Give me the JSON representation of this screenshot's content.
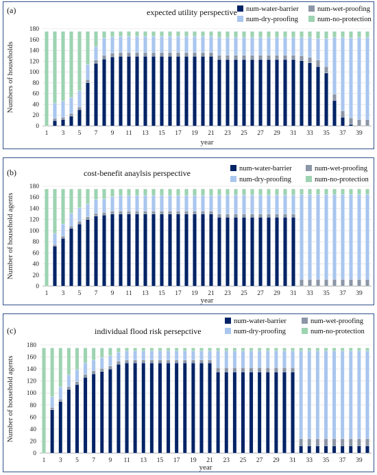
{
  "colors": {
    "water": "#002366",
    "wet": "#8c96a6",
    "dry": "#a9c6ee",
    "none": "#9dd3b1"
  },
  "chart_data": [
    {
      "type": "bar",
      "stacked": true,
      "panel_label": "(a)",
      "title": "expected utility perspective",
      "xlabel": "year",
      "ylabel": "Numbers of households",
      "ylim": [
        0,
        180
      ],
      "yticks": [
        0,
        20,
        40,
        60,
        80,
        100,
        120,
        140,
        160,
        180
      ],
      "xtick_labels": [
        "1",
        "3",
        "5",
        "7",
        "9",
        "11",
        "13",
        "15",
        "17",
        "19",
        "21",
        "23",
        "25",
        "27",
        "29",
        "31",
        "33",
        "35",
        "37",
        "39"
      ],
      "legend": [
        "num-water-barrier",
        "num-wet-proofing",
        "num-dry-proofing",
        "num-no-protection"
      ],
      "categories": [
        "1",
        "2",
        "3",
        "4",
        "5",
        "6",
        "7",
        "8",
        "9",
        "10",
        "11",
        "12",
        "13",
        "14",
        "15",
        "16",
        "17",
        "18",
        "19",
        "20",
        "21",
        "22",
        "23",
        "24",
        "25",
        "26",
        "27",
        "28",
        "29",
        "30",
        "31",
        "32",
        "33",
        "34",
        "35",
        "36",
        "37",
        "38",
        "39",
        "40"
      ],
      "series": [
        {
          "name": "num-water-barrier",
          "values": [
            0,
            10,
            12,
            18,
            30,
            80,
            116,
            124,
            128,
            129,
            129,
            129,
            129,
            129,
            129,
            129,
            129,
            129,
            129,
            129,
            129,
            123,
            123,
            123,
            123,
            123,
            123,
            123,
            123,
            123,
            123,
            121,
            117,
            110,
            98,
            47,
            16,
            3,
            0,
            0
          ]
        },
        {
          "name": "num-wet-proofing",
          "values": [
            0,
            4,
            4,
            5,
            5,
            6,
            6,
            7,
            7,
            7,
            7,
            7,
            7,
            7,
            7,
            7,
            7,
            7,
            7,
            7,
            7,
            8,
            8,
            8,
            8,
            8,
            8,
            8,
            8,
            8,
            8,
            9,
            10,
            12,
            12,
            12,
            12,
            12,
            12,
            12
          ]
        },
        {
          "name": "num-dry-proofing",
          "values": [
            0,
            28,
            30,
            30,
            30,
            28,
            25,
            32,
            30,
            30,
            30,
            30,
            30,
            30,
            30,
            30,
            30,
            30,
            30,
            30,
            30,
            33,
            33,
            33,
            33,
            33,
            33,
            33,
            33,
            33,
            33,
            34,
            37,
            40,
            52,
            105,
            136,
            148,
            152,
            152
          ]
        },
        {
          "name": "num-no-protection",
          "values": [
            175,
            133,
            129,
            122,
            110,
            61,
            28,
            12,
            10,
            9,
            9,
            9,
            9,
            9,
            9,
            9,
            9,
            9,
            9,
            9,
            9,
            11,
            11,
            11,
            11,
            11,
            11,
            11,
            11,
            11,
            11,
            11,
            11,
            13,
            13,
            11,
            11,
            12,
            11,
            11
          ]
        }
      ]
    },
    {
      "type": "bar",
      "stacked": true,
      "panel_label": "(b)",
      "title": "cost-benefit anaylsis perspective",
      "xlabel": "year",
      "ylabel": "Number of household agents",
      "ylim": [
        0,
        180
      ],
      "yticks": [
        0,
        20,
        40,
        60,
        80,
        100,
        120,
        140,
        160,
        180
      ],
      "xtick_labels": [
        "1",
        "3",
        "5",
        "7",
        "9",
        "11",
        "13",
        "15",
        "17",
        "19",
        "21",
        "23",
        "25",
        "27",
        "29",
        "31",
        "33",
        "35",
        "37",
        "39"
      ],
      "legend": [
        "num-water-barrier",
        "num-wet-proofing",
        "num-dry-proofing",
        "num-no-protection"
      ],
      "categories": [
        "1",
        "2",
        "3",
        "4",
        "5",
        "6",
        "7",
        "8",
        "9",
        "10",
        "11",
        "12",
        "13",
        "14",
        "15",
        "16",
        "17",
        "18",
        "19",
        "20",
        "21",
        "22",
        "23",
        "24",
        "25",
        "26",
        "27",
        "28",
        "29",
        "30",
        "31",
        "32",
        "33",
        "34",
        "35",
        "36",
        "37",
        "38",
        "39",
        "40"
      ],
      "series": [
        {
          "name": "num-water-barrier",
          "values": [
            0,
            72,
            86,
            104,
            112,
            120,
            126,
            128,
            130,
            130,
            130,
            130,
            130,
            130,
            130,
            130,
            130,
            130,
            130,
            130,
            130,
            124,
            124,
            124,
            124,
            124,
            124,
            124,
            124,
            124,
            124,
            0,
            0,
            0,
            0,
            0,
            0,
            0,
            0,
            0
          ]
        },
        {
          "name": "num-wet-proofing",
          "values": [
            0,
            3,
            4,
            4,
            5,
            5,
            5,
            5,
            5,
            5,
            5,
            5,
            5,
            5,
            5,
            5,
            5,
            5,
            5,
            5,
            5,
            6,
            6,
            6,
            6,
            6,
            6,
            6,
            6,
            6,
            6,
            12,
            12,
            12,
            12,
            12,
            12,
            12,
            12,
            12
          ]
        },
        {
          "name": "num-dry-proofing",
          "values": [
            0,
            20,
            22,
            23,
            24,
            23,
            25,
            24,
            26,
            28,
            28,
            28,
            28,
            28,
            28,
            28,
            28,
            28,
            28,
            28,
            28,
            34,
            34,
            34,
            34,
            34,
            34,
            34,
            34,
            34,
            34,
            153,
            153,
            153,
            153,
            153,
            153,
            153,
            153,
            153
          ]
        },
        {
          "name": "num-no-protection",
          "values": [
            175,
            80,
            63,
            44,
            34,
            27,
            19,
            18,
            14,
            12,
            12,
            12,
            12,
            12,
            12,
            12,
            12,
            12,
            12,
            12,
            12,
            11,
            11,
            11,
            11,
            11,
            11,
            11,
            11,
            11,
            11,
            10,
            10,
            10,
            10,
            10,
            10,
            10,
            10,
            10
          ]
        }
      ]
    },
    {
      "type": "bar",
      "stacked": true,
      "panel_label": "(c)",
      "title": "individual flood risk persepctive",
      "xlabel": "year",
      "ylabel": "Number of household agents",
      "ylim": [
        0,
        180
      ],
      "yticks": [
        0,
        20,
        40,
        60,
        80,
        100,
        120,
        140,
        160,
        180
      ],
      "xtick_labels": [
        "1",
        "3",
        "5",
        "7",
        "9",
        "11",
        "13",
        "15",
        "17",
        "19",
        "21",
        "23",
        "25",
        "27",
        "29",
        "31",
        "33",
        "35",
        "37",
        "39"
      ],
      "legend": [
        "num-water-barrier",
        "num-wet-proofing",
        "num-dry-proofing",
        "num-no-protection"
      ],
      "categories": [
        "1",
        "2",
        "3",
        "4",
        "5",
        "6",
        "7",
        "8",
        "9",
        "10",
        "11",
        "12",
        "13",
        "14",
        "15",
        "16",
        "17",
        "18",
        "19",
        "20",
        "21",
        "22",
        "23",
        "24",
        "25",
        "26",
        "27",
        "28",
        "29",
        "30",
        "31",
        "32",
        "33",
        "34",
        "35",
        "36",
        "37",
        "38",
        "39",
        "40"
      ],
      "series": [
        {
          "name": "num-water-barrier",
          "values": [
            0,
            72,
            86,
            106,
            114,
            126,
            132,
            136,
            140,
            148,
            150,
            150,
            150,
            150,
            150,
            150,
            150,
            150,
            150,
            150,
            150,
            135,
            135,
            135,
            135,
            135,
            135,
            135,
            135,
            135,
            135,
            12,
            12,
            12,
            12,
            12,
            12,
            12,
            12,
            12
          ]
        },
        {
          "name": "num-wet-proofing",
          "values": [
            0,
            4,
            4,
            5,
            5,
            5,
            5,
            5,
            5,
            5,
            5,
            5,
            5,
            5,
            5,
            5,
            5,
            5,
            5,
            5,
            5,
            7,
            7,
            7,
            7,
            7,
            7,
            7,
            7,
            7,
            7,
            12,
            12,
            12,
            12,
            12,
            12,
            12,
            12,
            12
          ]
        },
        {
          "name": "num-dry-proofing",
          "values": [
            0,
            18,
            20,
            19,
            20,
            19,
            18,
            18,
            17,
            15,
            15,
            15,
            15,
            15,
            15,
            15,
            15,
            15,
            15,
            15,
            15,
            28,
            28,
            28,
            28,
            28,
            28,
            28,
            28,
            28,
            28,
            146,
            146,
            146,
            146,
            146,
            146,
            146,
            146,
            146
          ]
        },
        {
          "name": "num-no-protection",
          "values": [
            175,
            81,
            65,
            45,
            36,
            25,
            20,
            16,
            13,
            7,
            5,
            5,
            5,
            5,
            5,
            5,
            5,
            5,
            5,
            5,
            5,
            5,
            5,
            5,
            5,
            5,
            5,
            5,
            5,
            5,
            5,
            5,
            5,
            5,
            5,
            5,
            5,
            5,
            5,
            5
          ]
        }
      ]
    }
  ]
}
